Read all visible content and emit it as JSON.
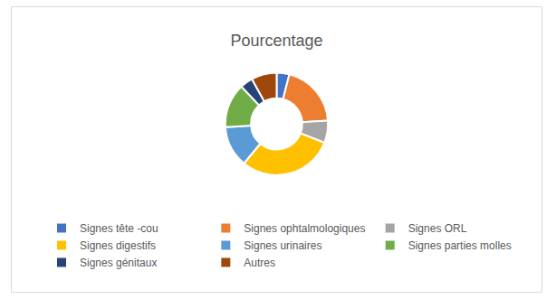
{
  "chart_data": {
    "type": "pie",
    "title": "Pourcentage",
    "categories": [
      "Signes tête -cou",
      "Signes ophtalmologiques",
      "Signes ORL",
      "Signes digestifs",
      "Signes urinaires",
      "Signes parties molles",
      "Signes génitaux",
      "Autres"
    ],
    "values": [
      4,
      20,
      7,
      30,
      13,
      14,
      4,
      8
    ],
    "colors": [
      "#4472c4",
      "#ed7d31",
      "#a5a5a5",
      "#ffc000",
      "#5b9bd5",
      "#70ad47",
      "#264478",
      "#9e480e"
    ],
    "legend": "bottom",
    "data_labels": false
  }
}
